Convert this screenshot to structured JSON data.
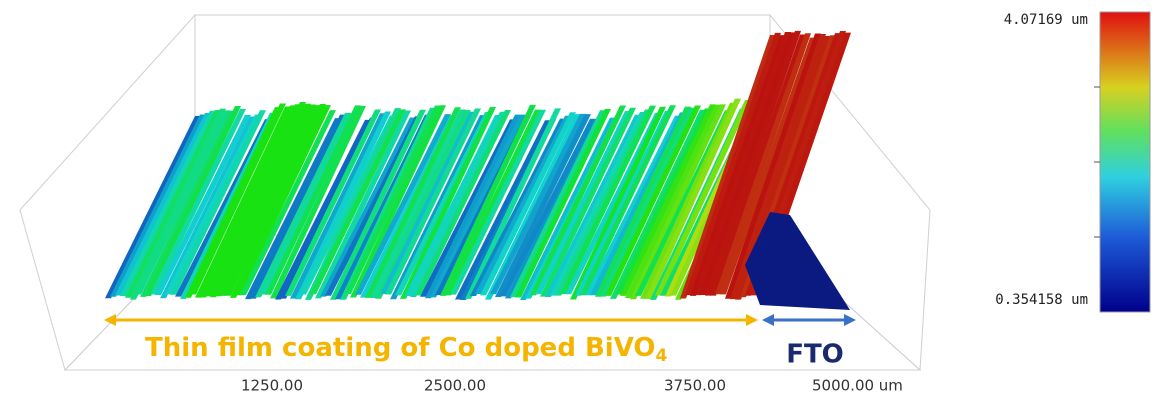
{
  "colorbar": {
    "max_label": "4.07169 um",
    "min_label": "0.354158 um"
  },
  "x_axis": {
    "ticks": [
      "1250.00",
      "2500.00",
      "3750.00",
      "5000.00 um"
    ]
  },
  "annotations": {
    "coating": "Thin film coating of Co doped BiVO",
    "coating_subscript": "4",
    "substrate": "FTO"
  }
}
